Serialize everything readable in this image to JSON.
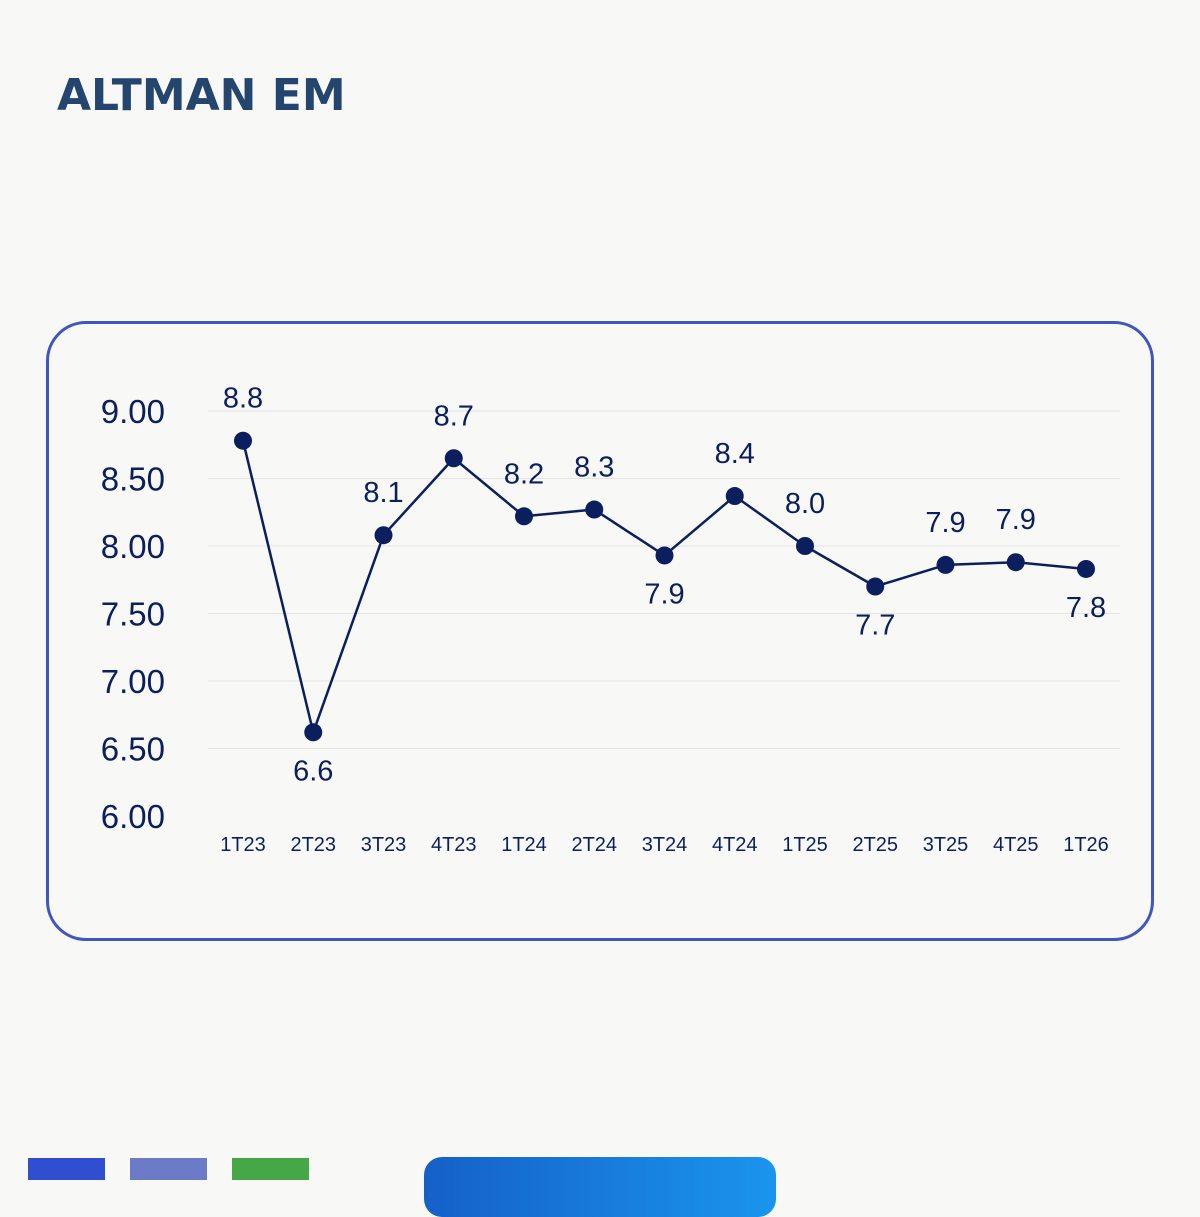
{
  "title": "ALTMAN EM",
  "colors": {
    "title": "#23456e",
    "card_border": "#3e55c2",
    "line": "#0b1f5e",
    "point": "#0b1f5e",
    "grid": "#e4e4e4",
    "axis_text": "#0b1f5e",
    "footer_bar_1": "#2f4fd0",
    "footer_bar_2": "#6b7bc8",
    "footer_bar_3": "#46a747",
    "footer_tab_start": "#1560c8",
    "footer_tab_end": "#1a95ee"
  },
  "chart_data": {
    "type": "line",
    "title": "",
    "xlabel": "",
    "ylabel": "",
    "categories": [
      "1T23",
      "2T23",
      "3T23",
      "4T23",
      "1T24",
      "2T24",
      "3T24",
      "4T24",
      "1T25",
      "2T25",
      "3T25",
      "4T25",
      "1T26"
    ],
    "values": [
      8.78,
      6.62,
      8.08,
      8.65,
      8.22,
      8.27,
      7.93,
      8.37,
      8.0,
      7.7,
      7.86,
      7.88,
      7.83
    ],
    "data_labels": [
      "8.8",
      "6.6",
      "8.1",
      "8.7",
      "8.2",
      "8.3",
      "7.9",
      "8.4",
      "8.0",
      "7.7",
      "7.9",
      "7.9",
      "7.8"
    ],
    "label_positions": [
      "above",
      "below",
      "above",
      "above",
      "above",
      "above",
      "below",
      "above",
      "above",
      "below",
      "above",
      "above",
      "below"
    ],
    "yticks": [
      "9.00",
      "8.50",
      "8.00",
      "7.50",
      "7.00",
      "6.50",
      "6.00"
    ],
    "ylim": [
      6.0,
      9.0
    ],
    "grid": true,
    "legend": "none"
  }
}
